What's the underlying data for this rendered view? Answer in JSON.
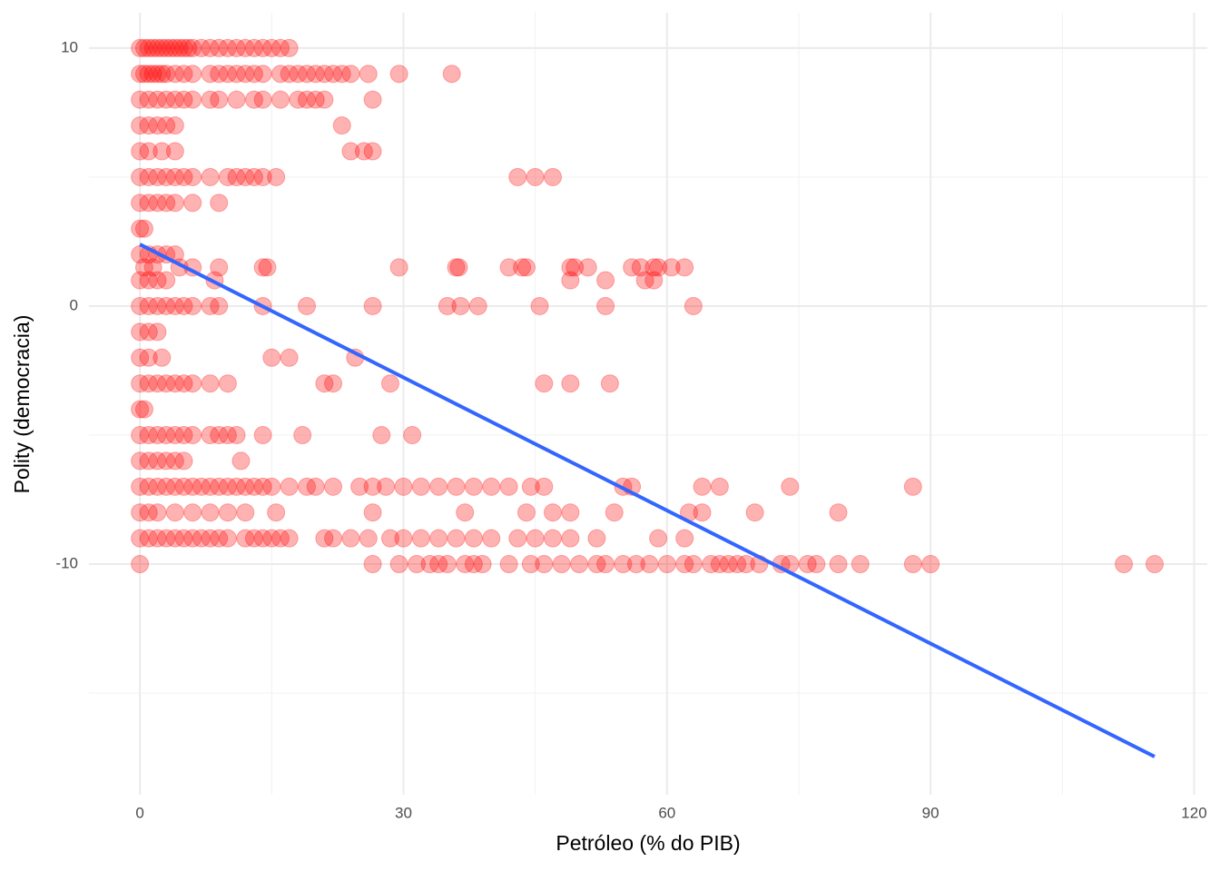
{
  "chart_data": {
    "type": "scatter",
    "x_label": "Petróleo (% do PIB)",
    "y_label": "Polity (democracia)",
    "xlim": [
      -5.8,
      121.5
    ],
    "ylim": [
      -18.94,
      11.37
    ],
    "xticks": [
      0,
      30,
      60,
      90,
      120
    ],
    "yticks": [
      -10,
      0,
      10
    ],
    "xminor": [
      15,
      45,
      75,
      105
    ],
    "yminor": [
      -15,
      -5,
      5
    ],
    "grid": true,
    "color": "#ff0000",
    "opacity": 0.3,
    "x": [
      0,
      0.5,
      1,
      1.5,
      2,
      2.5,
      3,
      3.5,
      4,
      4.5,
      5,
      5.5,
      6,
      7,
      8,
      9,
      10,
      11,
      12,
      13,
      14,
      15,
      16,
      17,
      0,
      0.5,
      1,
      1.5,
      2,
      2.5,
      3,
      4,
      5,
      6,
      8,
      9,
      10,
      11,
      12,
      13,
      14,
      16,
      17,
      18,
      19,
      20,
      21,
      22,
      23,
      24,
      26,
      29.5,
      35.5,
      0,
      1,
      2,
      3,
      4,
      5,
      6,
      8,
      9,
      11,
      13,
      14,
      16,
      18,
      19,
      20,
      21,
      26.5,
      0,
      1,
      2,
      3,
      4,
      23,
      0,
      1,
      2.5,
      4,
      24,
      25.5,
      26.5,
      0,
      1,
      2,
      3,
      4,
      5,
      6,
      8,
      10,
      11,
      12,
      13,
      14,
      15.5,
      43,
      45,
      47,
      0,
      1,
      2,
      3,
      4,
      6,
      9,
      0,
      0.5,
      0,
      1,
      2,
      3,
      4,
      0.5,
      1.5,
      4.5,
      6,
      9,
      14,
      14.5,
      29.5,
      36,
      36.3,
      42,
      43.5,
      44,
      49,
      49.5,
      51,
      56,
      57,
      58.5,
      59,
      60.5,
      62,
      0,
      1,
      2,
      3,
      8.5,
      49,
      53,
      57.5,
      58.5,
      0,
      1,
      2,
      3,
      4,
      5,
      6,
      8,
      9,
      14,
      19,
      26.5,
      35,
      36.5,
      38.5,
      45.5,
      53,
      63,
      0,
      1,
      2,
      0,
      1,
      2.5,
      15,
      17,
      24.5,
      0,
      1,
      2,
      3,
      4,
      5,
      6,
      8,
      10,
      21,
      22,
      28.5,
      46,
      49,
      53.5,
      0,
      0.5,
      0,
      1,
      2,
      3,
      4,
      5,
      6,
      8,
      9,
      10,
      11,
      14,
      18.5,
      27.5,
      31,
      0,
      1,
      2,
      3,
      4,
      5,
      11.5,
      0,
      1,
      2,
      3,
      4,
      5,
      6,
      7,
      8,
      9,
      10,
      11,
      12,
      13,
      14,
      15,
      17,
      19,
      20,
      22,
      25,
      26.5,
      28,
      30,
      32,
      34,
      36,
      38,
      40,
      42,
      44.5,
      46,
      55,
      56,
      64,
      66,
      74,
      88,
      0,
      1,
      2,
      4,
      6,
      8,
      10,
      12,
      15.5,
      26.5,
      37,
      44,
      47,
      49,
      54,
      62.5,
      64,
      70,
      79.5,
      0,
      1,
      2,
      3,
      4,
      5,
      6,
      7,
      8,
      9,
      10,
      12,
      13,
      14,
      15,
      16,
      17,
      21,
      22,
      24,
      26,
      28.5,
      30,
      32,
      34,
      36,
      38,
      40,
      43,
      45,
      47,
      49,
      52,
      59,
      62,
      0,
      26.5,
      29.5,
      31.5,
      33,
      34,
      35,
      37,
      38,
      39,
      42,
      44.5,
      46,
      48,
      50,
      52,
      53,
      55,
      56.5,
      58,
      60,
      62,
      63,
      65,
      66,
      67,
      68,
      69,
      70.5,
      73,
      74,
      76,
      77,
      79.5,
      82,
      88,
      90,
      112,
      115.5
    ],
    "values": [
      10,
      10,
      10,
      10,
      10,
      10,
      10,
      10,
      10,
      10,
      10,
      10,
      10,
      10,
      10,
      10,
      10,
      10,
      10,
      10,
      10,
      10,
      10,
      10,
      9,
      9,
      9,
      9,
      9,
      9,
      9,
      9,
      9,
      9,
      9,
      9,
      9,
      9,
      9,
      9,
      9,
      9,
      9,
      9,
      9,
      9,
      9,
      9,
      9,
      9,
      9,
      9,
      9,
      8,
      8,
      8,
      8,
      8,
      8,
      8,
      8,
      8,
      8,
      8,
      8,
      8,
      8,
      8,
      8,
      8,
      8,
      7,
      7,
      7,
      7,
      7,
      7,
      6,
      6,
      6,
      6,
      6,
      6,
      6,
      5,
      5,
      5,
      5,
      5,
      5,
      5,
      5,
      5,
      5,
      5,
      5,
      5,
      5,
      5,
      5,
      5,
      4,
      4,
      4,
      4,
      4,
      4,
      4,
      3,
      3,
      2,
      2,
      2,
      2,
      2,
      1.5,
      1.5,
      1.5,
      1.5,
      1.5,
      1.5,
      1.5,
      1.5,
      1.5,
      1.5,
      1.5,
      1.5,
      1.5,
      1.5,
      1.5,
      1.5,
      1.5,
      1.5,
      1.5,
      1.5,
      1.5,
      1.5,
      1,
      1,
      1,
      1,
      1,
      1,
      1,
      1,
      1,
      0,
      0,
      0,
      0,
      0,
      0,
      0,
      0,
      0,
      0,
      0,
      0,
      0,
      0,
      0,
      0,
      0,
      0,
      -1,
      -1,
      -1,
      -2,
      -2,
      -2,
      -2,
      -2,
      -2,
      -3,
      -3,
      -3,
      -3,
      -3,
      -3,
      -3,
      -3,
      -3,
      -3,
      -3,
      -3,
      -3,
      -3,
      -3,
      -4,
      -4,
      -5,
      -5,
      -5,
      -5,
      -5,
      -5,
      -5,
      -5,
      -5,
      -5,
      -5,
      -5,
      -5,
      -5,
      -5,
      -6,
      -6,
      -6,
      -6,
      -6,
      -6,
      -6,
      -7,
      -7,
      -7,
      -7,
      -7,
      -7,
      -7,
      -7,
      -7,
      -7,
      -7,
      -7,
      -7,
      -7,
      -7,
      -7,
      -7,
      -7,
      -7,
      -7,
      -7,
      -7,
      -7,
      -7,
      -7,
      -7,
      -7,
      -7,
      -7,
      -7,
      -7,
      -7,
      -7,
      -7,
      -7,
      -7,
      -7,
      -7,
      -8,
      -8,
      -8,
      -8,
      -8,
      -8,
      -8,
      -8,
      -8,
      -8,
      -8,
      -8,
      -8,
      -8,
      -8,
      -8,
      -8,
      -8,
      -8,
      -9,
      -9,
      -9,
      -9,
      -9,
      -9,
      -9,
      -9,
      -9,
      -9,
      -9,
      -9,
      -9,
      -9,
      -9,
      -9,
      -9,
      -9,
      -9,
      -9,
      -9,
      -9,
      -9,
      -9,
      -9,
      -9,
      -9,
      -9,
      -9,
      -9,
      -9,
      -9,
      -9,
      -9,
      -9,
      -10,
      -10,
      -10,
      -10,
      -10,
      -10,
      -10,
      -10,
      -10,
      -10,
      -10,
      -10,
      -10,
      -10,
      -10,
      -10,
      -10,
      -10,
      -10,
      -10,
      -10,
      -10,
      -10,
      -10,
      -10,
      -10,
      -10,
      -10,
      -10,
      -10,
      -10,
      -10,
      -10,
      -10,
      -10,
      -10,
      -10,
      -10,
      -10
    ],
    "fit": {
      "x": [
        0,
        115.5
      ],
      "y": [
        2.39,
        -17.46
      ],
      "color": "#3366ff"
    }
  }
}
